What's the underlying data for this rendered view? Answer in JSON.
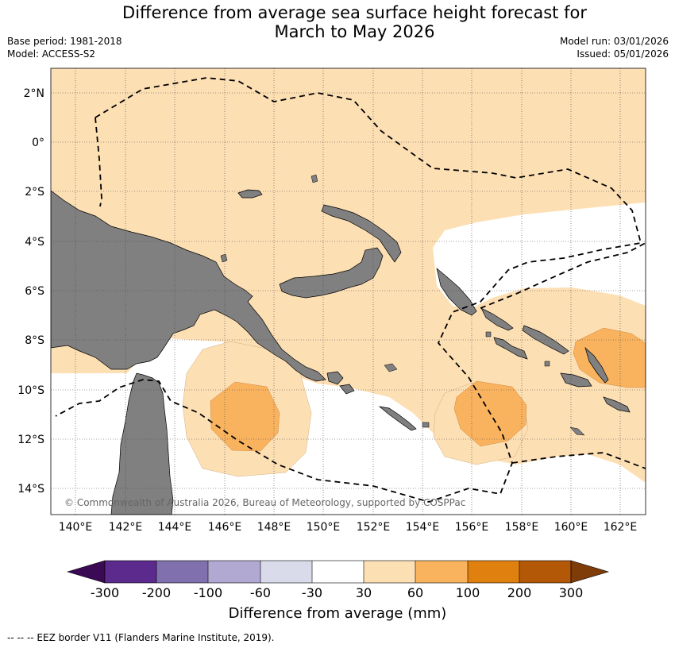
{
  "header": {
    "title_line1": "Difference from average sea surface height forecast for",
    "title_line2": "March to May 2026",
    "base_period": "Base period: 1981-2018",
    "model": "Model: ACCESS-S2",
    "model_run": "Model run: 03/01/2026",
    "issued": "Issued: 05/01/2026"
  },
  "map": {
    "lat_labels": [
      "2°N",
      "0°",
      "2°S",
      "4°S",
      "6°S",
      "8°S",
      "10°S",
      "12°S",
      "14°S"
    ],
    "lon_labels": [
      "140°E",
      "142°E",
      "144°E",
      "146°E",
      "148°E",
      "150°E",
      "152°E",
      "154°E",
      "156°E",
      "158°E",
      "160°E",
      "162°E"
    ],
    "copyright": "© Commonwealth of Australia 2026, Bureau of Meteorology, supported by COSPPac",
    "colors": {
      "land": "#808080",
      "band_30_60": "#fddfb4",
      "band_60_100": "#f9b35f",
      "neutral": "#ffffff"
    }
  },
  "colorbar": {
    "labels": [
      "-300",
      "-200",
      "-100",
      "-60",
      "-30",
      "30",
      "60",
      "100",
      "200",
      "300"
    ],
    "colors": [
      "#3c0955",
      "#5b2a8c",
      "#8070ae",
      "#b2a9d3",
      "#d9dbeb",
      "#ffffff",
      "#fddfb4",
      "#f9b35f",
      "#e0810f",
      "#b35806",
      "#7f3b08"
    ],
    "title": "Difference from average (mm)"
  },
  "footer": {
    "legend": "--  --  -- EEZ border V11 (Flanders Marine Institute, 2019)."
  }
}
